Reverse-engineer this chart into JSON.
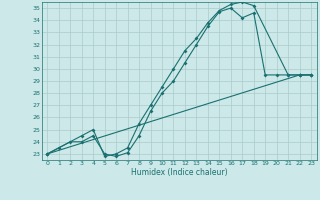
{
  "xlabel": "Humidex (Indice chaleur)",
  "bg_color": "#cce8e8",
  "grid_color": "#aacccc",
  "line_color": "#1a7070",
  "xlim": [
    -0.5,
    23.5
  ],
  "ylim": [
    22.5,
    35.5
  ],
  "xticks": [
    0,
    1,
    2,
    3,
    4,
    5,
    6,
    7,
    8,
    9,
    10,
    11,
    12,
    13,
    14,
    15,
    16,
    17,
    18,
    19,
    20,
    21,
    22,
    23
  ],
  "yticks": [
    23,
    24,
    25,
    26,
    27,
    28,
    29,
    30,
    31,
    32,
    33,
    34,
    35
  ],
  "line1_x": [
    0,
    1,
    2,
    3,
    4,
    5,
    6,
    7,
    8,
    9,
    10,
    11,
    12,
    13,
    14,
    15,
    16,
    17,
    18,
    19,
    20,
    21,
    22,
    23
  ],
  "line1_y": [
    23,
    23.5,
    24,
    24,
    24.5,
    23.0,
    22.8,
    23.1,
    24.5,
    26.5,
    28.0,
    29.0,
    30.5,
    32.0,
    33.5,
    34.7,
    35.0,
    34.2,
    34.6,
    29.5,
    29.5,
    29.5,
    29.5,
    29.5
  ],
  "line2_x": [
    0,
    3,
    4,
    5,
    6,
    7,
    8,
    9,
    10,
    11,
    12,
    13,
    14,
    15,
    16,
    17,
    18,
    21,
    22,
    23
  ],
  "line2_y": [
    23,
    24.5,
    25.0,
    22.8,
    23.0,
    23.5,
    25.5,
    27.0,
    28.5,
    30.0,
    31.5,
    32.5,
    33.8,
    34.8,
    35.3,
    35.5,
    35.2,
    29.5,
    29.5,
    29.5
  ],
  "line3_x": [
    0,
    22,
    23
  ],
  "line3_y": [
    23,
    29.5,
    29.5
  ]
}
